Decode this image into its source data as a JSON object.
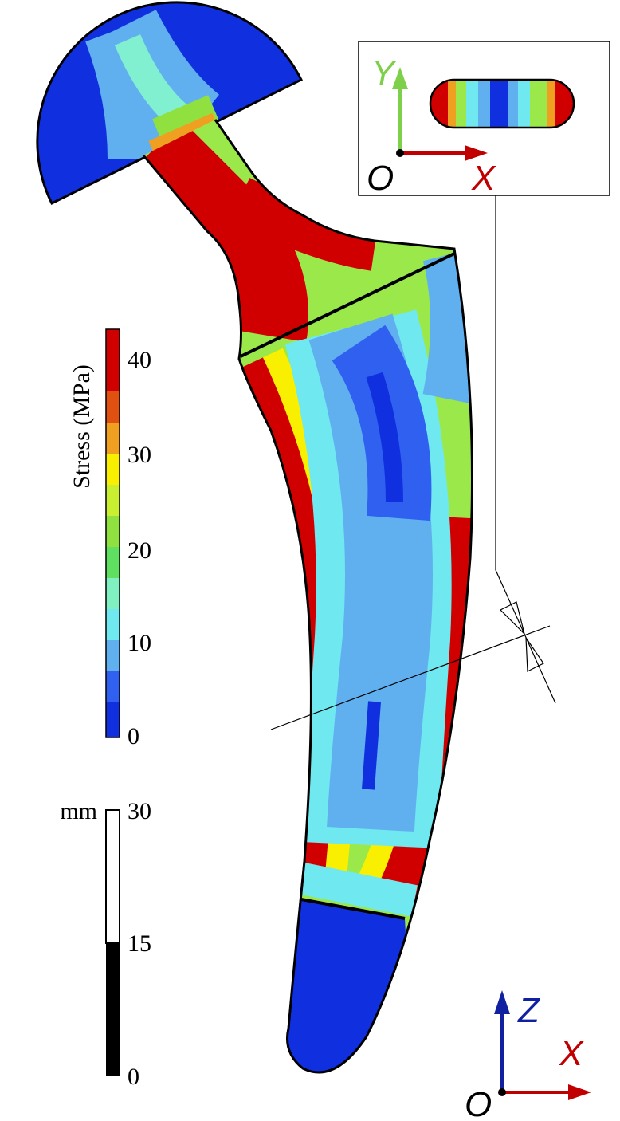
{
  "colorbar": {
    "label": "Stress (MPa)",
    "ticks": [
      "40",
      "30",
      "20",
      "10",
      "0"
    ]
  },
  "scale_bar": {
    "unit": "mm",
    "ticks": [
      "30",
      "15",
      "0"
    ]
  },
  "inset_axes": {
    "y": "Y",
    "x": "X",
    "origin": "O"
  },
  "main_axes": {
    "z": "Z",
    "x": "X",
    "origin": "O"
  }
}
